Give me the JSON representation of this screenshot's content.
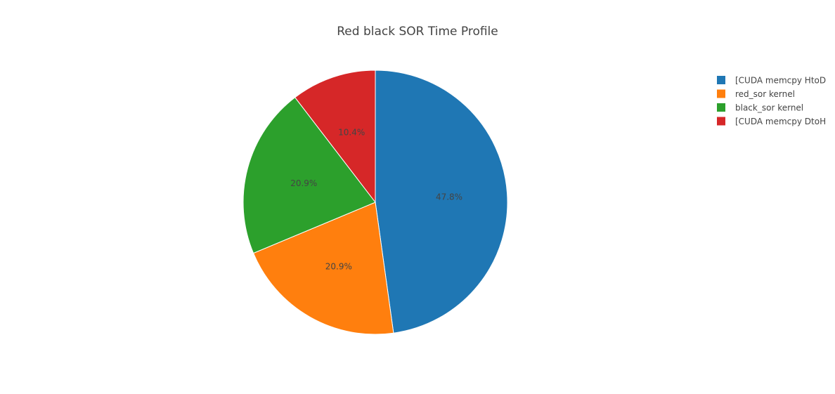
{
  "chart_data": {
    "type": "pie",
    "title": "Red black SOR Time Profile",
    "labels": [
      "[CUDA memcpy HtoD",
      "red_sor kernel",
      "black_sor kernel",
      "[CUDA memcpy DtoH"
    ],
    "values": [
      47.8,
      20.9,
      20.9,
      10.4
    ],
    "value_labels": [
      "47.8%",
      "20.9%",
      "20.9%",
      "10.4%"
    ],
    "colors": [
      "#1f77b4",
      "#ff7f0e",
      "#2ca02c",
      "#d62728"
    ],
    "direction": "clockwise",
    "start_angle_deg": 90,
    "legend_position": "top-right",
    "legend_order": [
      0,
      1,
      2,
      3
    ]
  }
}
